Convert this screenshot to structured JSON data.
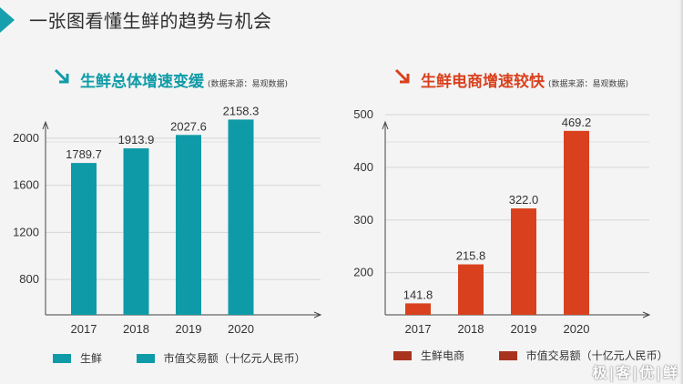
{
  "slide": {
    "title": "一张图看懂生鲜的趋势与机会",
    "watermark": "极|客|优|鲜"
  },
  "left": {
    "section_title": "生鲜总体增速变缓",
    "section_source": "(数据来源：易观数据)",
    "accent": "#0e9ba7",
    "arrow_icon": "arrow-down-right-icon",
    "legend_series": "生鲜",
    "legend_measure": "市值交易额（十亿元人民币）"
  },
  "right": {
    "section_title": "生鲜电商增速较快",
    "section_source": "(数据来源：易观数据)",
    "accent": "#d9411e",
    "legend_swatch": "#a83420",
    "arrow_icon": "arrow-down-right-icon",
    "legend_series": "生鲜电商",
    "legend_measure": "市值交易额（十亿元人民币）"
  },
  "chart_data": [
    {
      "type": "bar",
      "categories": [
        "2017",
        "2018",
        "2019",
        "2020"
      ],
      "values": [
        1789.7,
        1913.9,
        2027.6,
        2158.3
      ],
      "value_labels": [
        "1789.7",
        "1913.9",
        "2027.6",
        "2158.3"
      ],
      "yticks": [
        "800",
        "1200",
        "1600",
        "2000"
      ],
      "ylim": [
        500,
        2200
      ],
      "ytick_values": [
        800,
        1200,
        1600,
        2000
      ],
      "grid": true,
      "color": "#0e9ba7"
    },
    {
      "type": "bar",
      "categories": [
        "2017",
        "2018",
        "2019",
        "2020"
      ],
      "values": [
        141.8,
        215.8,
        322.0,
        469.2
      ],
      "value_labels": [
        "141.8",
        "215.8",
        "322.0",
        "469.2"
      ],
      "yticks": [
        "200",
        "300",
        "400",
        "500"
      ],
      "ylim": [
        120,
        500
      ],
      "ytick_values": [
        200,
        300,
        400,
        500
      ],
      "grid": true,
      "color": "#d9411e"
    }
  ]
}
